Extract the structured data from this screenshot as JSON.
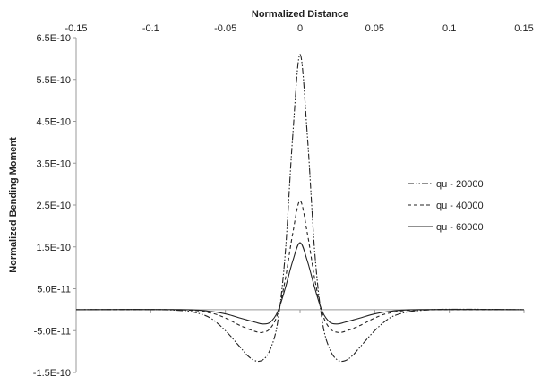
{
  "chart_data": {
    "type": "line",
    "title": "",
    "xlabel": "Normalized Distance",
    "ylabel": "Normalized Bending Moment",
    "xlim": [
      -0.15,
      0.15
    ],
    "ylim": [
      -1.5e-10,
      6.5e-10
    ],
    "x_ticks": [
      "-0.15",
      "-0.1",
      "-0.05",
      "0",
      "0.05",
      "0.1",
      "0.15"
    ],
    "x_tick_values": [
      -0.15,
      -0.1,
      -0.05,
      0,
      0.05,
      0.1,
      0.15
    ],
    "y_ticks": [
      "6.5E-10",
      "5.5E-10",
      "4.5E-10",
      "3.5E-10",
      "2.5E-10",
      "1.5E-10",
      "5.0E-11",
      "-5.0E-11",
      "-1.5E-10"
    ],
    "y_tick_values": [
      6.5e-10,
      5.5e-10,
      4.5e-10,
      3.5e-10,
      2.5e-10,
      1.5e-10,
      5e-11,
      -5e-11,
      -1.5e-10
    ],
    "x_axis_position": "top",
    "grid": false,
    "legend_position": "right",
    "series": [
      {
        "name": "qu - 20000",
        "dash": "dash-dot-dot",
        "x": [
          -0.15,
          -0.1,
          -0.08,
          -0.07,
          -0.06,
          -0.05,
          -0.04,
          -0.035,
          -0.03,
          -0.025,
          -0.02,
          -0.015,
          -0.01,
          -0.005,
          0,
          0.005,
          0.01,
          0.015,
          0.02,
          0.025,
          0.03,
          0.035,
          0.04,
          0.05,
          0.06,
          0.07,
          0.08,
          0.1,
          0.15
        ],
        "y": [
          0,
          2e-13,
          -2e-12,
          -7e-12,
          -2e-11,
          -5e-11,
          -9e-11,
          -1.1e-10,
          -1.22e-10,
          -1.2e-10,
          -9.5e-11,
          -3e-11,
          1.3e-10,
          4.1e-10,
          6.1e-10,
          4.1e-10,
          1.3e-10,
          -3e-11,
          -9.5e-11,
          -1.2e-10,
          -1.22e-10,
          -1.1e-10,
          -9e-11,
          -5e-11,
          -2e-11,
          -7e-12,
          -2e-12,
          1e-12,
          0
        ]
      },
      {
        "name": "qu - 40000",
        "dash": "dashed",
        "x": [
          -0.15,
          -0.08,
          -0.06,
          -0.05,
          -0.04,
          -0.03,
          -0.025,
          -0.02,
          -0.015,
          -0.01,
          -0.005,
          0,
          0.005,
          0.01,
          0.015,
          0.02,
          0.025,
          0.03,
          0.04,
          0.05,
          0.06,
          0.08,
          0.15
        ],
        "y": [
          0,
          -5e-13,
          -8e-12,
          -2e-11,
          -3.8e-11,
          -5.2e-11,
          -5.4e-11,
          -4.5e-11,
          -1e-11,
          7e-11,
          1.8e-10,
          2.6e-10,
          1.8e-10,
          7e-11,
          -1e-11,
          -4.5e-11,
          -5.4e-11,
          -5.2e-11,
          -3.8e-11,
          -2e-11,
          -8e-12,
          -5e-13,
          0
        ]
      },
      {
        "name": "qu - 60000",
        "dash": "solid",
        "x": [
          -0.15,
          -0.08,
          -0.06,
          -0.05,
          -0.04,
          -0.03,
          -0.025,
          -0.02,
          -0.015,
          -0.01,
          -0.005,
          0,
          0.005,
          0.01,
          0.015,
          0.02,
          0.025,
          0.03,
          0.04,
          0.05,
          0.06,
          0.08,
          0.15
        ],
        "y": [
          0,
          2e-13,
          -4e-12,
          -1e-11,
          -2e-11,
          -3e-11,
          -3.4e-11,
          -3e-11,
          -5e-12,
          5e-11,
          1.15e-10,
          1.6e-10,
          1.15e-10,
          5e-11,
          -5e-12,
          -3e-11,
          -3.4e-11,
          -3e-11,
          -2e-11,
          -1e-11,
          -4e-12,
          2e-13,
          0
        ]
      }
    ]
  }
}
